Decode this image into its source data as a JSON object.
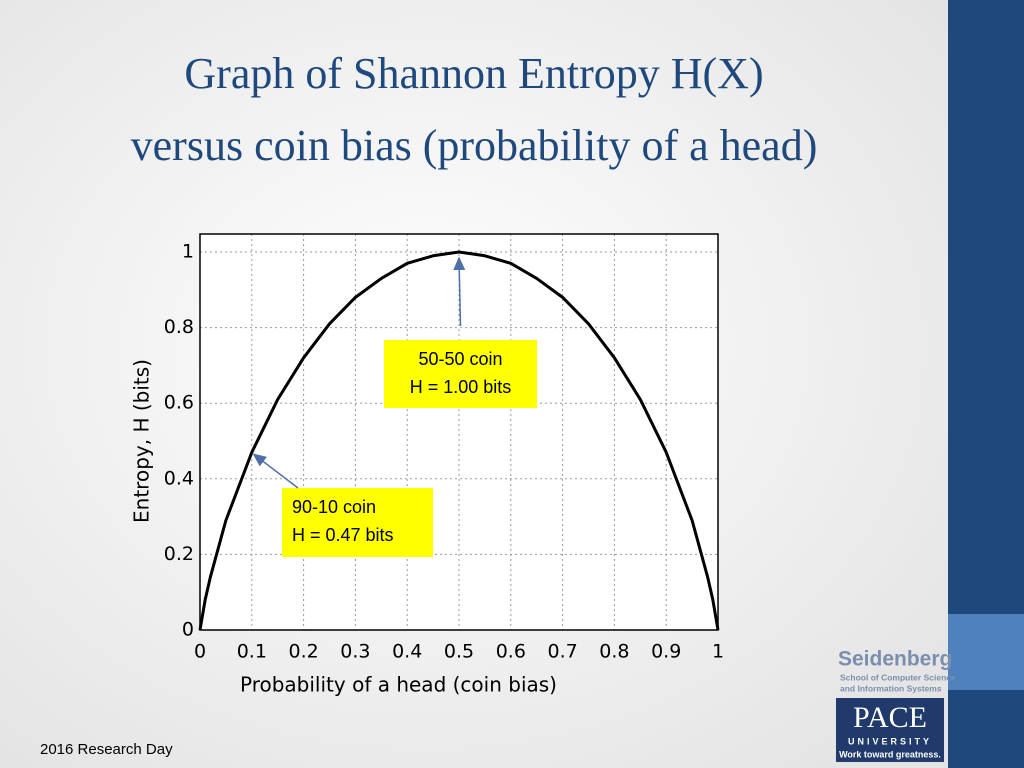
{
  "chart_data": {
    "type": "line",
    "title": [
      "Graph of Shannon Entropy H(X)",
      "versus coin bias (probability of a head)"
    ],
    "x_label": "Probability of a head (coin bias)",
    "y_label": "Entropy, H (bits)",
    "x": [
      0,
      0.01,
      0.02,
      0.05,
      0.1,
      0.15,
      0.2,
      0.25,
      0.3,
      0.35,
      0.4,
      0.45,
      0.5,
      0.55,
      0.6,
      0.65,
      0.7,
      0.75,
      0.8,
      0.85,
      0.9,
      0.95,
      0.98,
      0.99,
      1
    ],
    "series": [
      {
        "color": "#000000",
        "values": [
          0,
          0.08,
          0.14,
          0.29,
          0.47,
          0.61,
          0.72,
          0.81,
          0.88,
          0.93,
          0.97,
          0.99,
          1.0,
          0.99,
          0.97,
          0.93,
          0.88,
          0.81,
          0.72,
          0.61,
          0.47,
          0.29,
          0.14,
          0.08,
          0
        ]
      }
    ],
    "xlim": [
      0,
      1
    ],
    "xticks": [
      0,
      0.1,
      0.2,
      0.3,
      0.4,
      0.5,
      0.6,
      0.7,
      0.8,
      0.9,
      1
    ],
    "ylim": [
      0,
      1
    ],
    "yticks": [
      0,
      0.2,
      0.4,
      0.6,
      0.8,
      1
    ],
    "grid": true,
    "annotations": [
      {
        "lines": [
          "50-50 coin",
          "H = 1.00 bits"
        ],
        "x": 0.5,
        "y": 1.0,
        "color": "#ffff00"
      },
      {
        "lines": [
          "90-10 coin",
          "H = 0.47 bits"
        ],
        "x": 0.1,
        "y": 0.47,
        "color": "#ffff00"
      }
    ]
  },
  "footer": "2016 Research Day",
  "logo": {
    "school": "Seidenberg",
    "sub": [
      "School of Computer Science",
      "and Information Systems"
    ],
    "name": "PACE",
    "university": "UNIVERSITY",
    "motto": "Work toward greatness."
  }
}
